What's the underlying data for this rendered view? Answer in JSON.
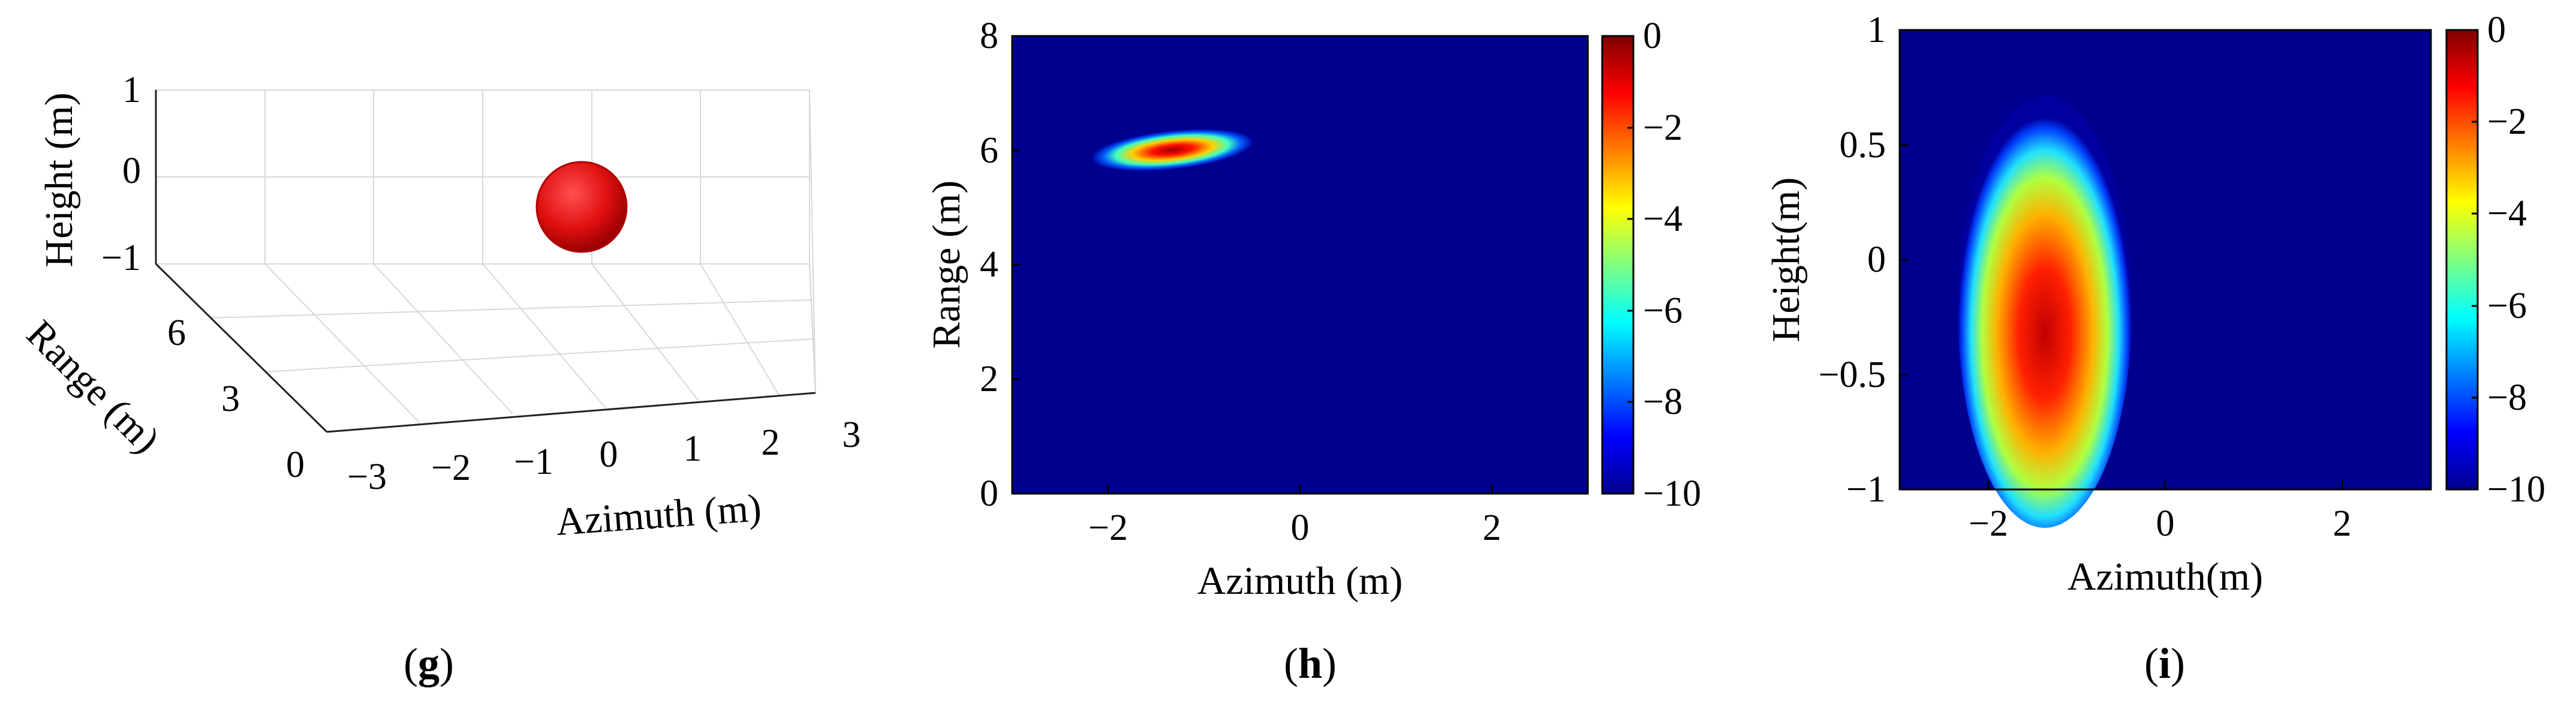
{
  "chart_data": [
    {
      "panel": "g",
      "type": "scatter",
      "caption_letter": "g",
      "xlabel": "Azimuth (m)",
      "ylabel": "Range (m)",
      "zlabel": "Height (m)",
      "xticks": [
        "−3",
        "−2",
        "−1",
        "0",
        "1",
        "2",
        "3"
      ],
      "yticks": [
        "0",
        "3",
        "6"
      ],
      "zticks": [
        "−1",
        "0",
        "1"
      ],
      "xlim": [
        -3,
        3
      ],
      "ylim": [
        0,
        8
      ],
      "zlim": [
        -1,
        1
      ],
      "grid": true,
      "object": {
        "shape": "sphere",
        "center_azimuth": -1.2,
        "center_range": 6,
        "center_height": 0,
        "color": "#d81414"
      }
    },
    {
      "panel": "h",
      "type": "heatmap",
      "caption_letter": "h",
      "xlabel": "Azimuth (m)",
      "ylabel": "Range (m)",
      "xlim": [
        -3,
        3
      ],
      "ylim": [
        0,
        8
      ],
      "xticks": [
        "−2",
        "0",
        "2"
      ],
      "yticks": [
        "0",
        "2",
        "4",
        "6",
        "8"
      ],
      "colorbar_ticks": [
        "0",
        "−2",
        "−4",
        "−6",
        "−8",
        "−10"
      ],
      "clim": [
        -10,
        0
      ],
      "peak": {
        "azimuth": -1.2,
        "range": 6.0,
        "value_db": 0
      }
    },
    {
      "panel": "i",
      "type": "heatmap",
      "caption_letter": "i",
      "xlabel": "Azimuth(m)",
      "ylabel": "Height(m)",
      "xlim": [
        -3,
        3
      ],
      "ylim": [
        -1,
        1
      ],
      "xticks": [
        "−2",
        "0",
        "2"
      ],
      "yticks": [
        "−1",
        "−0.5",
        "0",
        "0.5",
        "1"
      ],
      "colorbar_ticks": [
        "0",
        "−2",
        "−4",
        "−6",
        "−8",
        "−10"
      ],
      "clim": [
        -10,
        0
      ],
      "peak": {
        "azimuth": -1.3,
        "height": -0.25,
        "value_db": 0
      }
    }
  ],
  "captions": {
    "g": "g",
    "h": "h",
    "i": "i"
  }
}
